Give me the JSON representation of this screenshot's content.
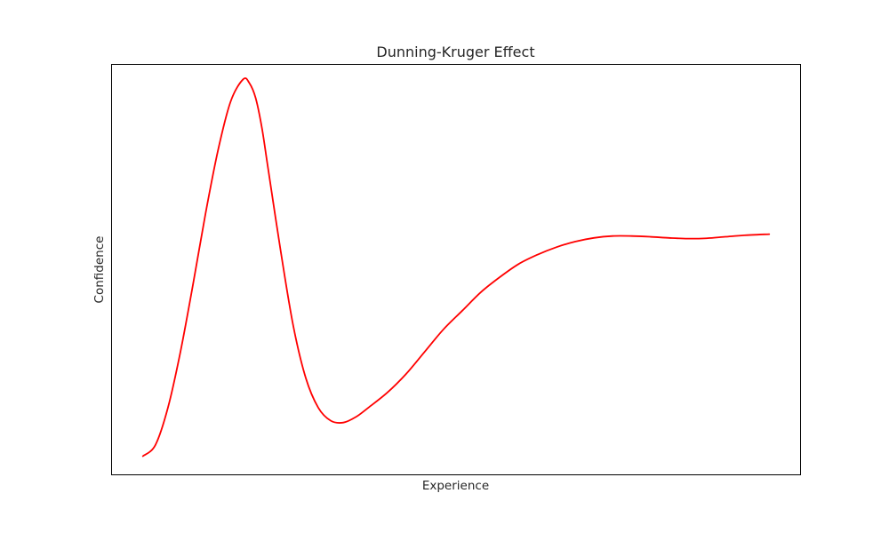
{
  "chart_data": {
    "type": "line",
    "title": "Dunning-Kruger Effect",
    "xlabel": "Experience",
    "ylabel": "Confidence",
    "x_ticks_visible": false,
    "y_ticks_visible": false,
    "grid": false,
    "legend": "none",
    "xlim": [
      0,
      1.1
    ],
    "ylim": [
      0,
      1.1
    ],
    "series": [
      {
        "color": "#ff0000",
        "x": [
          0.05,
          0.07,
          0.09,
          0.11,
          0.13,
          0.15,
          0.17,
          0.19,
          0.21,
          0.22,
          0.23,
          0.24,
          0.25,
          0.27,
          0.29,
          0.31,
          0.33,
          0.35,
          0.37,
          0.39,
          0.41,
          0.44,
          0.47,
          0.5,
          0.53,
          0.56,
          0.59,
          0.62,
          0.65,
          0.68,
          0.71,
          0.74,
          0.77,
          0.8,
          0.83,
          0.86,
          0.89,
          0.92,
          0.95,
          0.98,
          1.01,
          1.05
        ],
        "y": [
          0.05,
          0.08,
          0.18,
          0.33,
          0.51,
          0.7,
          0.87,
          1.0,
          1.06,
          1.05,
          1.01,
          0.93,
          0.82,
          0.6,
          0.4,
          0.26,
          0.18,
          0.145,
          0.14,
          0.155,
          0.18,
          0.22,
          0.27,
          0.33,
          0.39,
          0.44,
          0.49,
          0.53,
          0.565,
          0.59,
          0.61,
          0.625,
          0.635,
          0.64,
          0.64,
          0.638,
          0.635,
          0.633,
          0.634,
          0.638,
          0.642,
          0.645
        ]
      }
    ]
  }
}
